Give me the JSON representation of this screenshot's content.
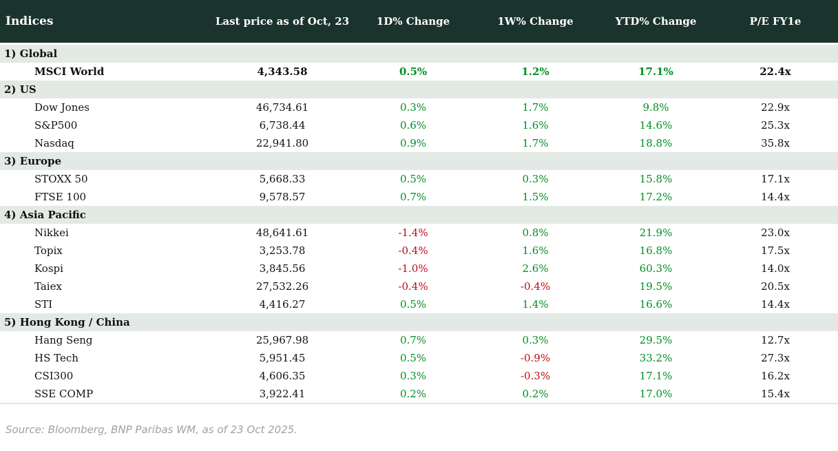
{
  "chart_data": {
    "type": "table",
    "title": "Indices",
    "columns": [
      "Indices",
      "Last price as of Oct, 23",
      "1D% Change",
      "1W% Change",
      "YTD% Change",
      "P/E FY1e"
    ],
    "sections": [
      {
        "label": "1) Global",
        "rows": [
          {
            "name": "MSCI World",
            "bold": true,
            "price": "4,343.58",
            "d1": "0.5%",
            "w1": "1.2%",
            "ytd": "17.1%",
            "pe": "22.4x"
          }
        ]
      },
      {
        "label": "2) US",
        "rows": [
          {
            "name": "Dow Jones",
            "price": "46,734.61",
            "d1": "0.3%",
            "w1": "1.7%",
            "ytd": "9.8%",
            "pe": "22.9x"
          },
          {
            "name": "S&P500",
            "price": "6,738.44",
            "d1": "0.6%",
            "w1": "1.6%",
            "ytd": "14.6%",
            "pe": "25.3x"
          },
          {
            "name": "Nasdaq",
            "price": "22,941.80",
            "d1": "0.9%",
            "w1": "1.7%",
            "ytd": "18.8%",
            "pe": "35.8x"
          }
        ]
      },
      {
        "label": "3) Europe",
        "rows": [
          {
            "name": "STOXX 50",
            "price": "5,668.33",
            "d1": "0.5%",
            "w1": "0.3%",
            "ytd": "15.8%",
            "pe": "17.1x"
          },
          {
            "name": "FTSE 100",
            "price": "9,578.57",
            "d1": "0.7%",
            "w1": "1.5%",
            "ytd": "17.2%",
            "pe": "14.4x"
          }
        ]
      },
      {
        "label": "4) Asia Pacific",
        "rows": [
          {
            "name": "Nikkei",
            "price": "48,641.61",
            "d1": "-1.4%",
            "w1": "0.8%",
            "ytd": "21.9%",
            "pe": "23.0x"
          },
          {
            "name": "Topix",
            "price": "3,253.78",
            "d1": "-0.4%",
            "w1": "1.6%",
            "ytd": "16.8%",
            "pe": "17.5x"
          },
          {
            "name": "Kospi",
            "price": "3,845.56",
            "d1": "-1.0%",
            "w1": "2.6%",
            "ytd": "60.3%",
            "pe": "14.0x"
          },
          {
            "name": "Taiex",
            "price": "27,532.26",
            "d1": "-0.4%",
            "w1": "-0.4%",
            "ytd": "19.5%",
            "pe": "20.5x"
          },
          {
            "name": "STI",
            "price": "4,416.27",
            "d1": "0.5%",
            "w1": "1.4%",
            "ytd": "16.6%",
            "pe": "14.4x"
          }
        ]
      },
      {
        "label": "5) Hong Kong / China",
        "rows": [
          {
            "name": "Hang Seng",
            "price": "25,967.98",
            "d1": "0.7%",
            "w1": "0.3%",
            "ytd": "29.5%",
            "pe": "12.7x"
          },
          {
            "name": "HS Tech",
            "price": "5,951.45",
            "d1": "0.5%",
            "w1": "-0.9%",
            "ytd": "33.2%",
            "pe": "27.3x"
          },
          {
            "name": "CSI300",
            "price": "4,606.35",
            "d1": "0.3%",
            "w1": "-0.3%",
            "ytd": "17.1%",
            "pe": "16.2x"
          },
          {
            "name": "SSE COMP",
            "price": "3,922.41",
            "d1": "0.2%",
            "w1": "0.2%",
            "ytd": "17.0%",
            "pe": "15.4x"
          }
        ]
      }
    ]
  },
  "footer": {
    "source": "Source: Bloomberg, BNP Paribas WM, as of 23 Oct 2025."
  },
  "colors": {
    "header_bg": "#1b332d",
    "section_bg": "#e3e9e4",
    "positive": "#008e21",
    "negative": "#c00a17"
  }
}
